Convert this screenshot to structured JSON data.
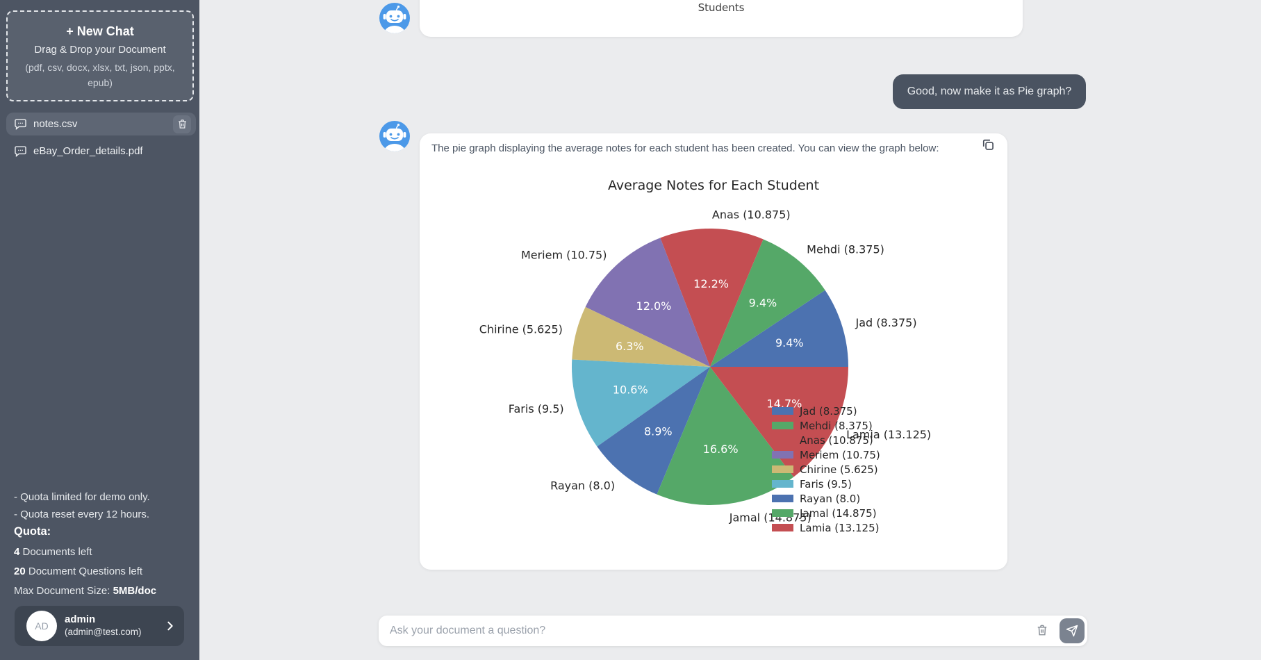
{
  "sidebar": {
    "new_chat": {
      "label": "+ New Chat",
      "subtitle": "Drag & Drop your Document",
      "formats": "(pdf, csv, docx, xlsx, txt, json, pptx, epub)"
    },
    "documents": [
      {
        "name": "notes.csv",
        "selected": true
      },
      {
        "name": "eBay_Order_details.pdf",
        "selected": false
      }
    ],
    "quota": {
      "note1": "- Quota limited for demo only.",
      "note2": "- Quota reset every 12 hours.",
      "title": "Quota:",
      "docs_left_value": "4",
      "docs_left_label": " Documents left",
      "questions_left_value": "20",
      "questions_left_label": " Document Questions left",
      "max_size_label": "Max Document Size: ",
      "max_size_value": "5MB/doc"
    },
    "user": {
      "initials": "AD",
      "name": "admin",
      "email": "(admin@test.com)"
    }
  },
  "chat": {
    "previous_message_tail": "Students",
    "user_message": "Good, now make it as Pie graph?",
    "bot_message": "The pie graph displaying the average notes for each student has been created. You can view the graph below:"
  },
  "composer": {
    "placeholder": "Ask your document a question?"
  },
  "chart_data": {
    "type": "pie",
    "title": "Average Notes for Each Student",
    "labels": [
      "Jad",
      "Mehdi",
      "Anas",
      "Meriem",
      "Chirine",
      "Faris",
      "Rayan",
      "Jamal",
      "Lamia"
    ],
    "values": [
      8.375,
      8.375,
      10.875,
      10.75,
      5.625,
      9.5,
      8.0,
      14.875,
      13.125
    ],
    "slice_labels": [
      "Jad (8.375)",
      "Mehdi (8.375)",
      "Anas (10.875)",
      "Meriem (10.75)",
      "Chirine (5.625)",
      "Faris (9.5)",
      "Rayan (8.0)",
      "Jamal (14.875)",
      "Lamia (13.125)"
    ],
    "percent_labels": [
      "9.4%",
      "9.4%",
      "12.2%",
      "12.0%",
      "6.3%",
      "10.6%",
      "8.9%",
      "16.6%",
      "14.7%"
    ],
    "colors": [
      "#4c72b0",
      "#55a868",
      "#c44e52",
      "#8172b2",
      "#ccb974",
      "#64b5cd",
      "#4c72b0",
      "#55a868",
      "#c44e52"
    ],
    "start_angle_deg": 0,
    "direction": "counterclockwise",
    "label_distance": 1.1,
    "pct_distance": 0.6,
    "legend_entries": [
      "Jad (8.375)",
      "Mehdi (8.375)",
      "Anas (10.875)",
      "Meriem (10.75)",
      "Chirine (5.625)",
      "Faris (9.5)",
      "Rayan (8.0)",
      "Jamal (14.875)",
      "Lamia (13.125)"
    ],
    "legend_position": "right-overlapping-pie"
  }
}
